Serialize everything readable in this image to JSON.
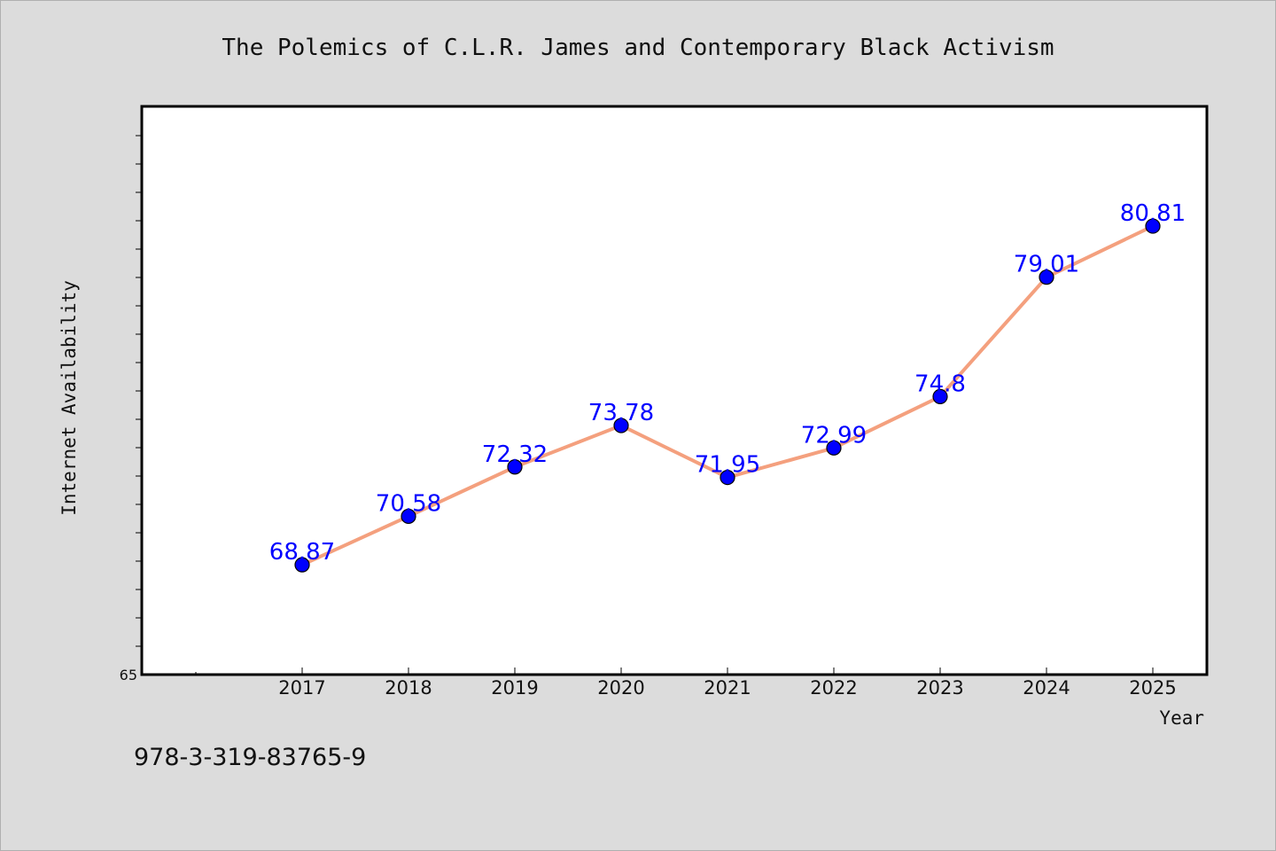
{
  "chart_data": {
    "type": "line",
    "title": "The Polemics of C.L.R. James and Contemporary Black Activism",
    "xlabel": "Year",
    "ylabel": "Internet Availability",
    "categories": [
      "2017",
      "2018",
      "2019",
      "2020",
      "2021",
      "2022",
      "2023",
      "2024",
      "2025"
    ],
    "series": [
      {
        "values": [
          68.87,
          70.58,
          72.32,
          73.78,
          71.95,
          72.99,
          74.8,
          79.01,
          80.81
        ],
        "labels": [
          "68.87",
          "70.58",
          "72.32",
          "73.78",
          "71.95",
          "72.99",
          "74.8",
          "79.01",
          "80.81"
        ]
      }
    ],
    "ylim": [
      65,
      85
    ],
    "y_tick_labels": [
      "65"
    ],
    "grid": false,
    "line_color": "#f4a07e",
    "marker_color": "#0000ff",
    "label_color": "#0000ff"
  },
  "caption": "978-3-319-83765-9"
}
